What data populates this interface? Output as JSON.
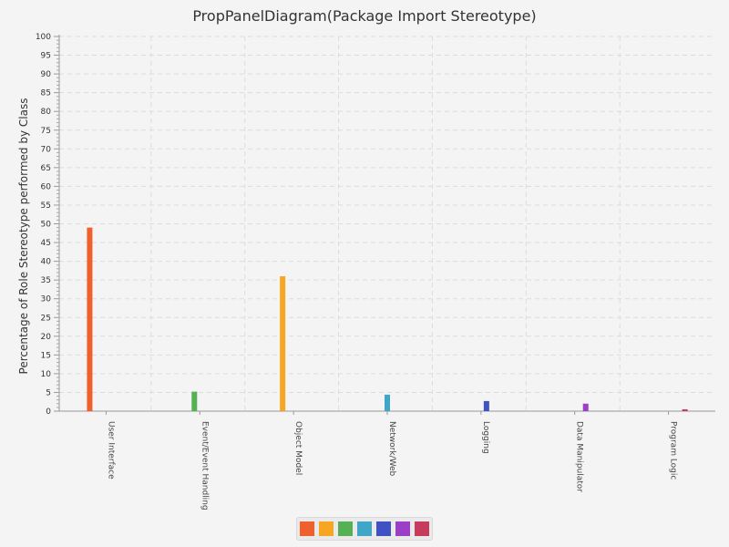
{
  "chart_data": {
    "type": "bar",
    "title": "PropPanelDiagram(Package Import Stereotype)",
    "xlabel": "",
    "ylabel": "Percentage of Role Stereotype performed by Class",
    "ylim": [
      0,
      100
    ],
    "y_major_step": 5,
    "y_minor_step": 1,
    "grid": true,
    "legend": "bottom",
    "categories": [
      "User Interface",
      "Event/Event Handling",
      "Object Model",
      "Network/Web",
      "Logging",
      "Data Manipulator",
      "Program Logic"
    ],
    "series": [
      {
        "color": "#f0602c",
        "values": [
          49,
          0,
          0,
          0,
          0,
          0,
          0
        ]
      },
      {
        "color": "#f6a623",
        "values": [
          0,
          0,
          36,
          0,
          0,
          0,
          0
        ]
      },
      {
        "color": "#55b153",
        "values": [
          0,
          5.2,
          0,
          0,
          0,
          0,
          0
        ]
      },
      {
        "color": "#3fa6c7",
        "values": [
          0,
          0,
          0,
          4.4,
          0,
          0,
          0
        ]
      },
      {
        "color": "#3f51c4",
        "values": [
          0,
          0,
          0,
          0,
          2.7,
          0,
          0
        ]
      },
      {
        "color": "#9b3fc6",
        "values": [
          0,
          0,
          0,
          0,
          0,
          2.0,
          0
        ]
      },
      {
        "color": "#c73c5d",
        "values": [
          0,
          0,
          0,
          0,
          0,
          0,
          0.5
        ]
      }
    ]
  }
}
